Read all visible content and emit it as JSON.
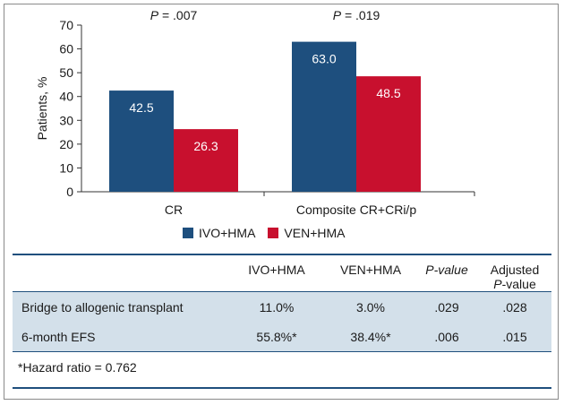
{
  "chart_data": {
    "type": "bar",
    "categories": [
      "CR",
      "Composite CR+CRi/p"
    ],
    "series": [
      {
        "name": "IVO+HMA",
        "values": [
          42.5,
          63.0
        ],
        "labels": [
          "42.5",
          "63.0"
        ],
        "color": "#1e4f7e"
      },
      {
        "name": "VEN+HMA",
        "values": [
          26.3,
          48.5
        ],
        "labels": [
          "26.3",
          "48.5"
        ],
        "color": "#c8102e"
      }
    ],
    "annotations": [
      "P = .007",
      "P = .019"
    ],
    "ylabel": "Patients, %",
    "ylim": [
      0,
      70
    ],
    "yticks": [
      "0",
      "10",
      "20",
      "30",
      "40",
      "50",
      "60",
      "70"
    ],
    "legend_position": "bottom"
  },
  "table": {
    "headers": [
      "IVO+HMA",
      "VEN+HMA",
      "P-value",
      "Adjusted",
      "P-value"
    ],
    "rows": [
      {
        "label": "Bridge to allogenic transplant",
        "ivo": "11.0%",
        "ven": "3.0%",
        "p": ".029",
        "adj": ".028"
      },
      {
        "label": "6-month EFS",
        "ivo": "55.8%*",
        "ven": "38.4%*",
        "p": ".006",
        "adj": ".015"
      }
    ],
    "footnote": "*Hazard ratio = 0.762"
  }
}
